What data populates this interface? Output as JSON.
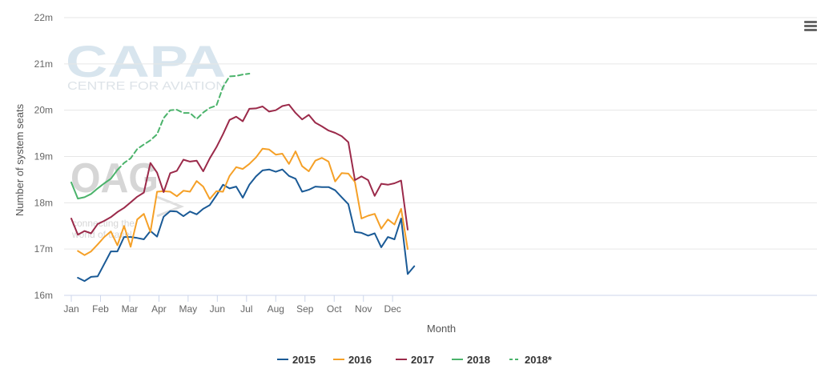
{
  "watermarks": {
    "capa_logo": "CAPA",
    "capa_tagline": "CENTRE FOR AVIATION",
    "oag_logo": "OAG",
    "oag_tagline_1": "connecting the",
    "oag_tagline_2": "world of travel"
  },
  "menu": {
    "icon": "hamburger-menu-icon"
  },
  "chart_data": {
    "type": "line",
    "title": "",
    "xlabel": "Month",
    "ylabel": "Number of system seats",
    "x_tick_labels": [
      "Jan",
      "Feb",
      "Mar",
      "Apr",
      "May",
      "Jun",
      "Jul",
      "Aug",
      "Sep",
      "Oct",
      "Nov",
      "Dec"
    ],
    "y_ticks": [
      16,
      17,
      18,
      19,
      20,
      21,
      22
    ],
    "y_tick_labels": [
      "16m",
      "17m",
      "18m",
      "19m",
      "20m",
      "21m",
      "22m"
    ],
    "ylim": [
      16,
      22
    ],
    "x_unit": "week of year",
    "xlim": [
      1,
      53
    ],
    "grid": "horizontal",
    "legend_position": "bottom",
    "series": [
      {
        "name": "2015",
        "color": "#1a5a96",
        "dash": "solid",
        "x": [
          2,
          3,
          4,
          5,
          6,
          7,
          8,
          9,
          10,
          11,
          12,
          13,
          14,
          15,
          16,
          17,
          18,
          19,
          20,
          21,
          22,
          23,
          24,
          25,
          26,
          27,
          28,
          29,
          30,
          31,
          32,
          33,
          34,
          35,
          36,
          37,
          38,
          39,
          40,
          41,
          42,
          43,
          44,
          45,
          46,
          47,
          48,
          49,
          50,
          51,
          52,
          53
        ],
        "values": [
          16.38,
          16.31,
          16.4,
          16.41,
          16.68,
          16.95,
          16.95,
          17.26,
          17.26,
          17.24,
          17.21,
          17.39,
          17.27,
          17.7,
          17.82,
          17.81,
          17.71,
          17.81,
          17.75,
          17.87,
          17.95,
          18.16,
          18.39,
          18.31,
          18.35,
          18.11,
          18.39,
          18.57,
          18.7,
          18.72,
          18.67,
          18.72,
          18.58,
          18.52,
          18.24,
          18.28,
          18.35,
          18.34,
          18.34,
          18.27,
          18.12,
          17.97,
          17.37,
          17.35,
          17.29,
          17.34,
          17.04,
          17.26,
          17.21,
          17.66,
          16.46,
          16.63
        ]
      },
      {
        "name": "2016",
        "color": "#f5a027",
        "dash": "solid",
        "x": [
          2,
          3,
          4,
          5,
          6,
          7,
          8,
          9,
          10,
          11,
          12,
          13,
          14,
          15,
          16,
          17,
          18,
          19,
          20,
          21,
          22,
          23,
          24,
          25,
          26,
          27,
          28,
          29,
          30,
          31,
          32,
          33,
          34,
          35,
          36,
          37,
          38,
          39,
          40,
          41,
          42,
          43,
          44,
          45,
          46,
          47,
          48,
          49,
          50,
          51,
          52
        ],
        "values": [
          16.96,
          16.87,
          16.95,
          17.1,
          17.26,
          17.38,
          17.08,
          17.5,
          17.05,
          17.64,
          17.76,
          17.37,
          18.24,
          18.25,
          18.24,
          18.14,
          18.26,
          18.24,
          18.47,
          18.35,
          18.08,
          18.25,
          18.24,
          18.58,
          18.77,
          18.73,
          18.84,
          18.98,
          19.17,
          19.15,
          19.04,
          19.06,
          18.84,
          19.11,
          18.79,
          18.68,
          18.91,
          18.97,
          18.89,
          18.46,
          18.64,
          18.63,
          18.45,
          17.66,
          17.72,
          17.76,
          17.44,
          17.64,
          17.53,
          17.87,
          17.0
        ]
      },
      {
        "name": "2017",
        "color": "#9b2a4a",
        "dash": "solid",
        "x": [
          1,
          2,
          3,
          4,
          5,
          6,
          7,
          8,
          9,
          10,
          11,
          12,
          13,
          14,
          15,
          16,
          17,
          18,
          19,
          20,
          21,
          22,
          23,
          24,
          25,
          26,
          27,
          28,
          29,
          30,
          31,
          32,
          33,
          34,
          35,
          36,
          37,
          38,
          39,
          40,
          41,
          42,
          43,
          44,
          45,
          46,
          47,
          48,
          49,
          50,
          51,
          52
        ],
        "values": [
          17.66,
          17.31,
          17.39,
          17.34,
          17.54,
          17.61,
          17.69,
          17.8,
          17.89,
          18.01,
          18.13,
          18.22,
          18.86,
          18.65,
          18.23,
          18.64,
          18.69,
          18.93,
          18.89,
          18.91,
          18.68,
          18.96,
          19.2,
          19.48,
          19.79,
          19.86,
          19.76,
          20.03,
          20.04,
          20.08,
          19.97,
          20.0,
          20.09,
          20.12,
          19.94,
          19.8,
          19.9,
          19.73,
          19.65,
          19.56,
          19.51,
          19.44,
          19.31,
          18.49,
          18.57,
          18.49,
          18.15,
          18.41,
          18.39,
          18.42,
          18.48,
          17.42
        ]
      },
      {
        "name": "2018",
        "color": "#4bb36b",
        "dash": "solid",
        "x": [
          1,
          2,
          3,
          4,
          5,
          6,
          7,
          8
        ],
        "values": [
          18.44,
          18.09,
          18.12,
          18.19,
          18.31,
          18.42,
          18.52,
          18.71
        ]
      },
      {
        "name": "2018*",
        "color": "#4bb36b",
        "dash": "dashed",
        "x": [
          8,
          9,
          10,
          11,
          12,
          13,
          14,
          15,
          16,
          17,
          18,
          19,
          20,
          21,
          22,
          23,
          24,
          25,
          26,
          27,
          28
        ],
        "values": [
          18.71,
          18.86,
          18.96,
          19.16,
          19.26,
          19.35,
          19.48,
          19.83,
          20.0,
          20.01,
          19.94,
          19.94,
          19.81,
          19.95,
          20.05,
          20.1,
          20.5,
          20.73,
          20.74,
          20.77,
          20.79
        ]
      }
    ]
  }
}
